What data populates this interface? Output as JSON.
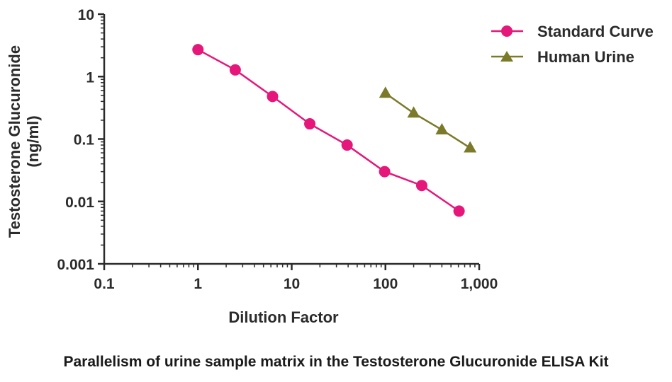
{
  "chart_data": {
    "type": "line",
    "caption": "Parallelism of urine sample matrix in the Testosterone Glucuronide ELISA Kit",
    "xlabel": "Dilution Factor",
    "ylabel_line1": "Testosterone Glucuronide",
    "ylabel_line2": "(ng/ml)",
    "x_scale": "log",
    "y_scale": "log",
    "xlim": [
      0.1,
      1000
    ],
    "ylim": [
      0.001,
      10
    ],
    "x_ticks": [
      {
        "value": 0.1,
        "label": "0.1"
      },
      {
        "value": 1,
        "label": "1"
      },
      {
        "value": 10,
        "label": "10"
      },
      {
        "value": 100,
        "label": "100"
      },
      {
        "value": 1000,
        "label": "1,000"
      }
    ],
    "y_ticks": [
      {
        "value": 0.001,
        "label": "0.001"
      },
      {
        "value": 0.01,
        "label": "0.01"
      },
      {
        "value": 0.1,
        "label": "0.1"
      },
      {
        "value": 1,
        "label": "1"
      },
      {
        "value": 10,
        "label": "10"
      }
    ],
    "grid": false,
    "legend_position": "top-right",
    "series": [
      {
        "name": "Standard Curve",
        "color": "#e6177a",
        "marker": "circle",
        "x": [
          1,
          2.5,
          6.25,
          15.6,
          39,
          98,
          244,
          610
        ],
        "y": [
          2.7,
          1.28,
          0.48,
          0.175,
          0.08,
          0.03,
          0.018,
          0.007
        ]
      },
      {
        "name": "Human Urine",
        "color": "#7a7a2a",
        "marker": "triangle",
        "x": [
          100,
          200,
          400,
          800
        ],
        "y": [
          0.54,
          0.26,
          0.14,
          0.072
        ]
      }
    ]
  }
}
